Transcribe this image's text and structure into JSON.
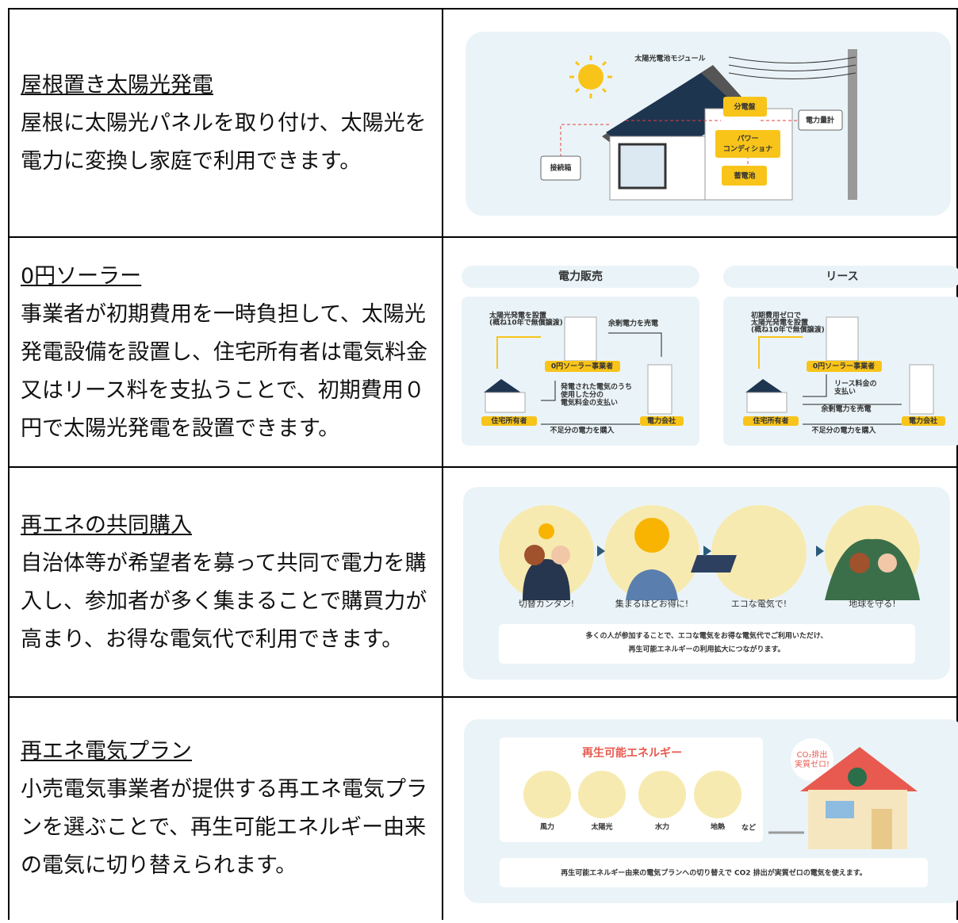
{
  "rows": [
    {
      "title": "屋根置き太陽光発電",
      "text": "屋根に太陽光パネルを取り付け、太陽光を電力に変換し家庭で利用できます。",
      "figure": {
        "module": "太陽光電池モジュール",
        "panel": "分電盤",
        "meter": "電力量計",
        "pcs": [
          "パワー",
          "コンディショナ"
        ],
        "box": "接続箱",
        "battery": "蓄電池"
      }
    },
    {
      "title": "0円ソーラー",
      "text": "事業者が初期費用を一時負担して、太陽光発電設備を設置し、住宅所有者は電気料金又はリース料を支払うことで、初期費用０円で太陽光発電を設置できます。",
      "figure": {
        "sale": {
          "heading": "電力販売",
          "install": [
            "太陽光発電を設置",
            "(概ね10年で無償譲渡)"
          ],
          "surplus": "余剰電力を売電",
          "operator": "0円ソーラー事業者",
          "payment": [
            "発電された電気のうち",
            "使用した分の",
            "電気料金の支払い"
          ],
          "owner": "住宅所有者",
          "utility": "電力会社",
          "purchase": "不足分の電力を購入"
        },
        "lease": {
          "heading": "リース",
          "install": [
            "初期費用ゼロで",
            "太陽光発電を設置",
            "(概ね10年で無償譲渡)"
          ],
          "operator": "0円ソーラー事業者",
          "payment": [
            "リース料金の",
            "支払い"
          ],
          "surplus": "余剰電力を売電",
          "owner": "住宅所有者",
          "utility": "電力会社",
          "purchase": "不足分の電力を購入"
        }
      }
    },
    {
      "title": "再エネの共同購入",
      "text": "自治体等が希望者を募って共同で電力を購入し、参加者が多く集まることで購買力が高まり、お得な電気代で利用できます。",
      "figure": {
        "steps": [
          "切替カンタン!",
          "集まるほどお得に!",
          "エコな電気で!",
          "地球を守る!"
        ],
        "caption": [
          "多くの人が参加することで、エコな電気をお得な電気代でご利用いただけ、",
          "再生可能エネルギーの利用拡大につながります。"
        ]
      }
    },
    {
      "title": "再エネ電気プラン",
      "text": "小売電気事業者が提供する再エネ電気プランを選ぶことで、再生可能エネルギー由来の電気に切り替えられます。",
      "figure": {
        "heading": "再生可能エネルギー",
        "sources": [
          "風力",
          "太陽光",
          "水力",
          "地熱"
        ],
        "etc": "など",
        "co2": [
          "CO₂排出",
          "実質ゼロ!"
        ],
        "caption": "再生可能エネルギー由来の電気プランへの切り替えで CO2 排出が実質ゼロの電気を使えます。"
      }
    }
  ]
}
